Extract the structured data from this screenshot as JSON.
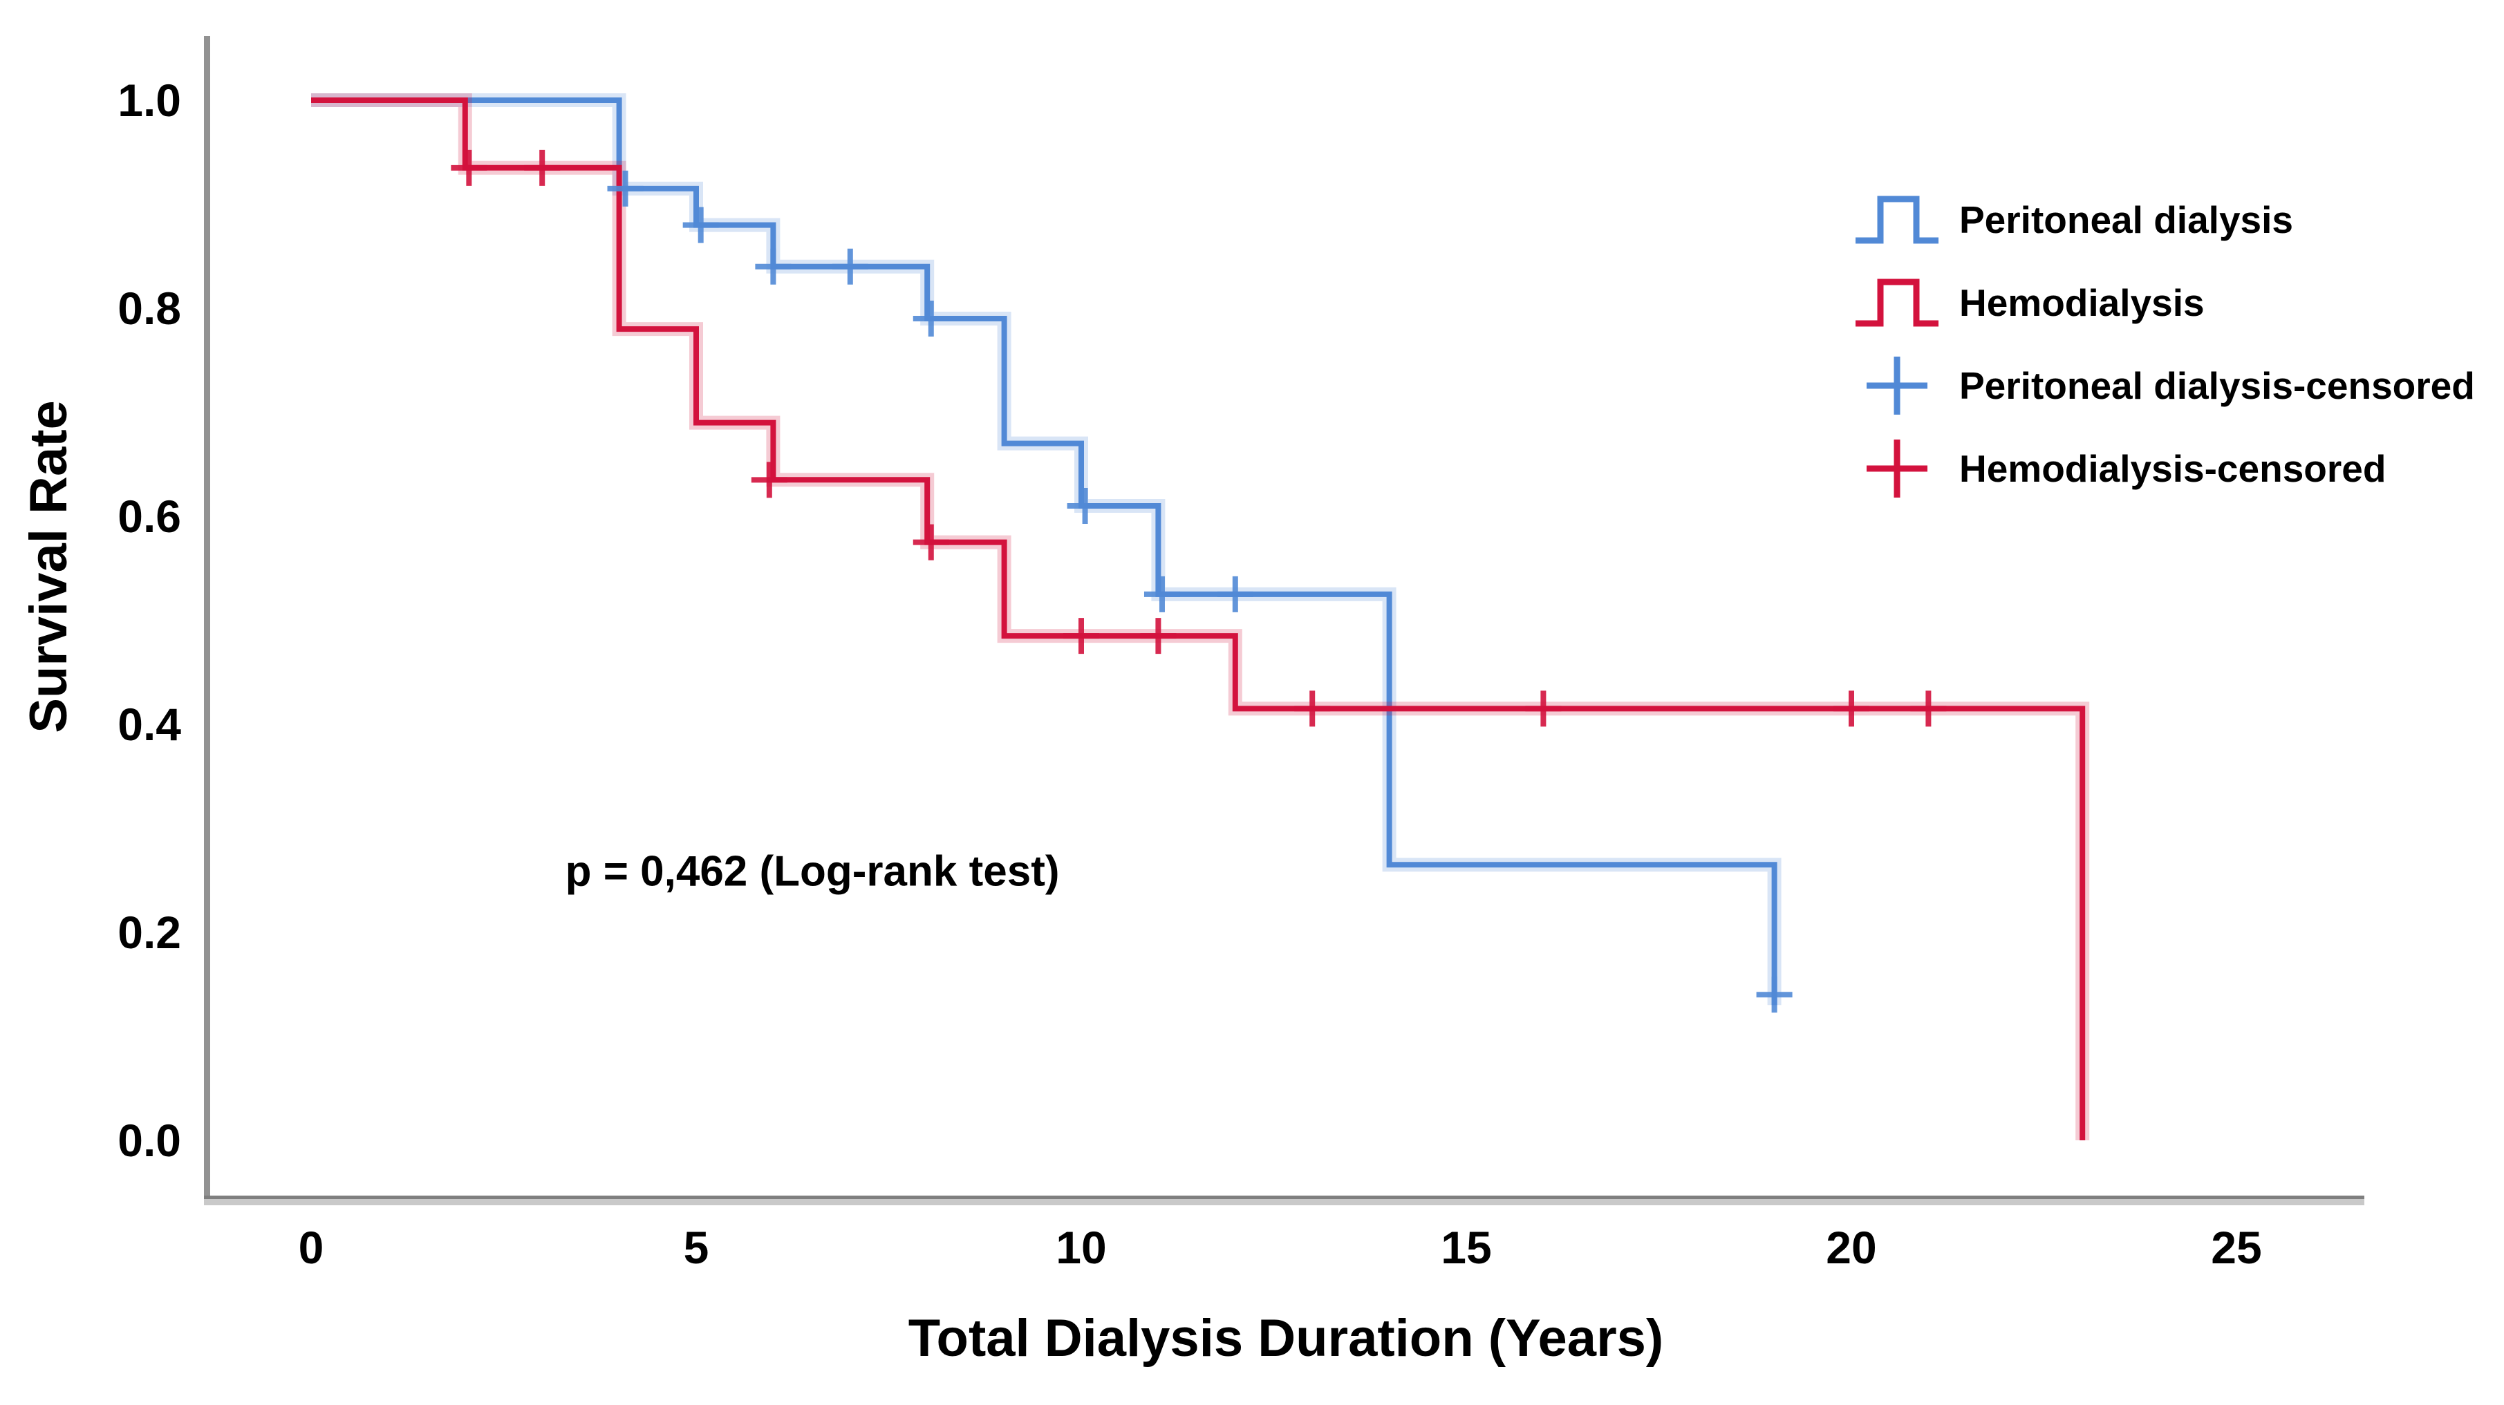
{
  "page": {
    "background": "#ffffff"
  },
  "colors": {
    "peritoneal": "#5189d6",
    "hemodialysis": "#d3123d",
    "axis_dark": "#7f7f7f",
    "axis_light": "#c9c9c9",
    "text": "#000000"
  },
  "chart_data": {
    "type": "line",
    "subtype": "kaplan-meier-step",
    "title": "",
    "xlabel": "Total Dialysis Duration (Years)",
    "ylabel": "Survival Rate",
    "x_ticks": [
      0,
      5,
      10,
      15,
      20,
      25
    ],
    "y_ticks": [
      "1.0",
      "0.8",
      "0.6",
      "0.4",
      "0.2",
      "0.0"
    ],
    "y_tick_values": [
      1.0,
      0.8,
      0.6,
      0.4,
      0.2,
      0.0
    ],
    "xlim": [
      -1.35,
      26.6
    ],
    "ylim": [
      -0.055,
      1.06
    ],
    "grid": false,
    "legend_position": "upper-right",
    "annotation": {
      "text": "p = 0,462 (Log-rank test)",
      "x": 3.3,
      "y": 0.245
    },
    "series": [
      {
        "name": "Peritoneal dialysis",
        "color": "#5189d6",
        "steps": [
          [
            0,
            1.0
          ],
          [
            4,
            1.0
          ],
          [
            4,
            0.915
          ],
          [
            5,
            0.915
          ],
          [
            5,
            0.88
          ],
          [
            6,
            0.88
          ],
          [
            6,
            0.84
          ],
          [
            8,
            0.84
          ],
          [
            8,
            0.79
          ],
          [
            9,
            0.79
          ],
          [
            9,
            0.67
          ],
          [
            10,
            0.67
          ],
          [
            10,
            0.61
          ],
          [
            11,
            0.61
          ],
          [
            11,
            0.525
          ],
          [
            14,
            0.525
          ],
          [
            14,
            0.265
          ],
          [
            19,
            0.265
          ],
          [
            19,
            0.13
          ]
        ],
        "censored": [
          [
            4.08,
            0.915
          ],
          [
            5.06,
            0.88
          ],
          [
            6.0,
            0.84
          ],
          [
            7.0,
            0.84
          ],
          [
            8.05,
            0.79
          ],
          [
            10.05,
            0.61
          ],
          [
            11.05,
            0.525
          ],
          [
            12.0,
            0.525
          ],
          [
            19.0,
            0.14
          ]
        ]
      },
      {
        "name": "Hemodialysis",
        "color": "#d3123d",
        "steps": [
          [
            0,
            1.0
          ],
          [
            2,
            1.0
          ],
          [
            2,
            0.935
          ],
          [
            4,
            0.935
          ],
          [
            4,
            0.78
          ],
          [
            5,
            0.78
          ],
          [
            5,
            0.69
          ],
          [
            6,
            0.69
          ],
          [
            6,
            0.635
          ],
          [
            8,
            0.635
          ],
          [
            8,
            0.575
          ],
          [
            9,
            0.575
          ],
          [
            9,
            0.485
          ],
          [
            12,
            0.485
          ],
          [
            12,
            0.415
          ],
          [
            23,
            0.415
          ],
          [
            23,
            0.0
          ]
        ],
        "censored": [
          [
            2.05,
            0.935
          ],
          [
            3.0,
            0.935
          ],
          [
            5.95,
            0.635
          ],
          [
            8.05,
            0.575
          ],
          [
            10.0,
            0.485
          ],
          [
            11.0,
            0.485
          ],
          [
            13.0,
            0.415
          ],
          [
            16.0,
            0.415
          ],
          [
            20.0,
            0.415
          ],
          [
            21.0,
            0.415
          ]
        ]
      }
    ]
  },
  "legend": {
    "items": [
      {
        "label": "Peritoneal dialysis",
        "glyph": "step-line",
        "color": "#5189d6"
      },
      {
        "label": "Hemodialysis",
        "glyph": "step-line",
        "color": "#d3123d"
      },
      {
        "label": "Peritoneal dialysis-censored",
        "glyph": "plus",
        "color": "#5189d6"
      },
      {
        "label": "Hemodialysis-censored",
        "glyph": "plus",
        "color": "#d3123d"
      }
    ]
  }
}
